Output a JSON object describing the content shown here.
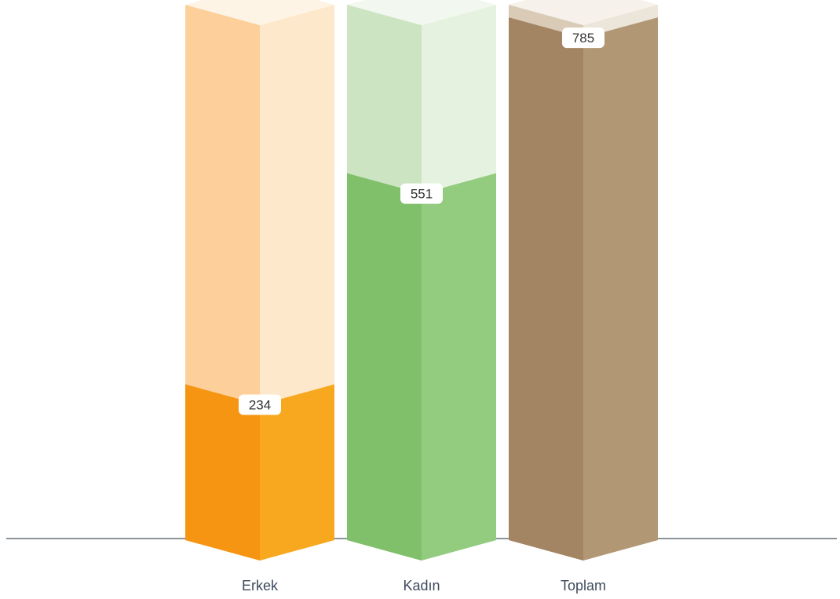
{
  "chart_data": {
    "type": "bar",
    "categories": [
      "Erkek",
      "Kadın",
      "Toplam"
    ],
    "values": [
      234,
      551,
      785
    ],
    "ylim": [
      0,
      850
    ],
    "grid": false,
    "legend": "none",
    "colors": [
      {
        "front": "#f69512",
        "side": "#f8a81e",
        "track_front": "#fdd09b",
        "track_side": "#fee8cb",
        "track_top": "#fef4e6"
      },
      {
        "front": "#80c06b",
        "side": "#93cc7f",
        "track_front": "#cde4c2",
        "track_side": "#e6f2e0",
        "track_top": "#f2f8ef"
      },
      {
        "front": "#a38564",
        "side": "#b29775",
        "track_front": "#d9cbb6",
        "track_side": "#ece5da",
        "track_top": "#f6f1ea"
      }
    ],
    "axis_color": "#8a9399"
  }
}
